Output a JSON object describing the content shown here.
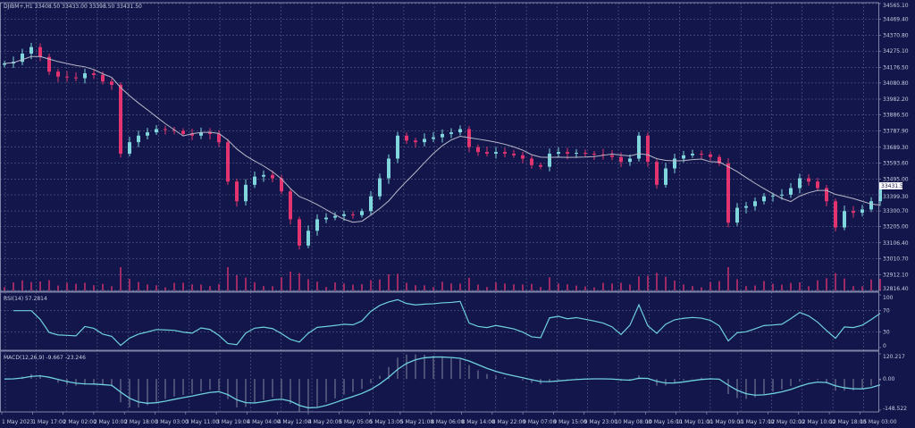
{
  "header": {
    "symbol_line": "DJIBM+,H1  33408.50 33433.00 33398.50 33431.50"
  },
  "colors": {
    "background": "#12164a",
    "grid": "#6a6f96",
    "bull": "#7fd6dc",
    "bear": "#e3346f",
    "ma": "#b8b8c8",
    "indicator": "#6fd0de",
    "volume": "#c0306a",
    "price_tag_bg": "#ffffff"
  },
  "chart_data": [
    {
      "type": "candlestick",
      "title": "DJIBM+,H1",
      "ohlc_header": {
        "open": 33408.5,
        "high": 33433.0,
        "low": 33398.5,
        "close": 33431.5
      },
      "current_price_label": "33431.50",
      "ylim": [
        32816.4,
        34565.1
      ],
      "y_ticks": [
        "34565.10",
        "34469.40",
        "34370.80",
        "34275.10",
        "34176.50",
        "34080.80",
        "33982.20",
        "33886.50",
        "33787.90",
        "33689.30",
        "33593.60",
        "33495.00",
        "33399.30",
        "33300.70",
        "33205.00",
        "33106.40",
        "33010.70",
        "32912.10",
        "32816.40"
      ],
      "x_ticks": [
        "1 May 2023",
        "1 May 17:00",
        "2 May 02:00",
        "2 May 10:00",
        "2 May 18:00",
        "3 May 03:00",
        "3 May 11:00",
        "3 May 19:00",
        "4 May 04:00",
        "4 May 12:00",
        "4 May 20:00",
        "5 May 05:00",
        "5 May 13:00",
        "5 May 21:00",
        "8 May 06:00",
        "8 May 14:00",
        "8 May 22:00",
        "9 May 07:00",
        "9 May 15:00",
        "9 May 23:00",
        "10 May 08:00",
        "10 May 16:00",
        "11 May 01:00",
        "11 May 09:00",
        "11 May 17:00",
        "12 May 02:00",
        "12 May 10:00",
        "12 May 18:00",
        "15 May 03:00"
      ],
      "grid": true,
      "closes": [
        34200,
        34210,
        34260,
        34300,
        34240,
        34150,
        34120,
        34115,
        34110,
        34140,
        34130,
        34090,
        34070,
        33650,
        33720,
        33760,
        33780,
        33800,
        33795,
        33790,
        33770,
        33760,
        33780,
        33770,
        33720,
        33480,
        33360,
        33460,
        33510,
        33520,
        33500,
        33420,
        33250,
        33090,
        33180,
        33250,
        33260,
        33270,
        33280,
        33275,
        33300,
        33390,
        33500,
        33620,
        33760,
        33730,
        33720,
        33740,
        33750,
        33770,
        33780,
        33800,
        33690,
        33660,
        33650,
        33660,
        33650,
        33640,
        33620,
        33580,
        33570,
        33650,
        33660,
        33650,
        33655,
        33650,
        33645,
        33640,
        33630,
        33600,
        33620,
        33760,
        33600,
        33460,
        33560,
        33620,
        33640,
        33650,
        33645,
        33630,
        33590,
        33230,
        33320,
        33330,
        33360,
        33390,
        33395,
        33400,
        33440,
        33500,
        33480,
        33440,
        33360,
        33200,
        33300,
        33290,
        33310,
        33360,
        33431.5
      ]
    },
    {
      "type": "line",
      "title": "RSI(14) 57.2814",
      "ylim": [
        0,
        100
      ],
      "y_ticks": [
        "100",
        "70",
        "30",
        "0"
      ]
    },
    {
      "type": "line",
      "title": "MACD(12,26,9) -9.667 -23.246",
      "ylim": [
        -148.522,
        120.217
      ],
      "y_ticks": [
        "120.217",
        "0.00",
        "-148.522"
      ]
    }
  ]
}
